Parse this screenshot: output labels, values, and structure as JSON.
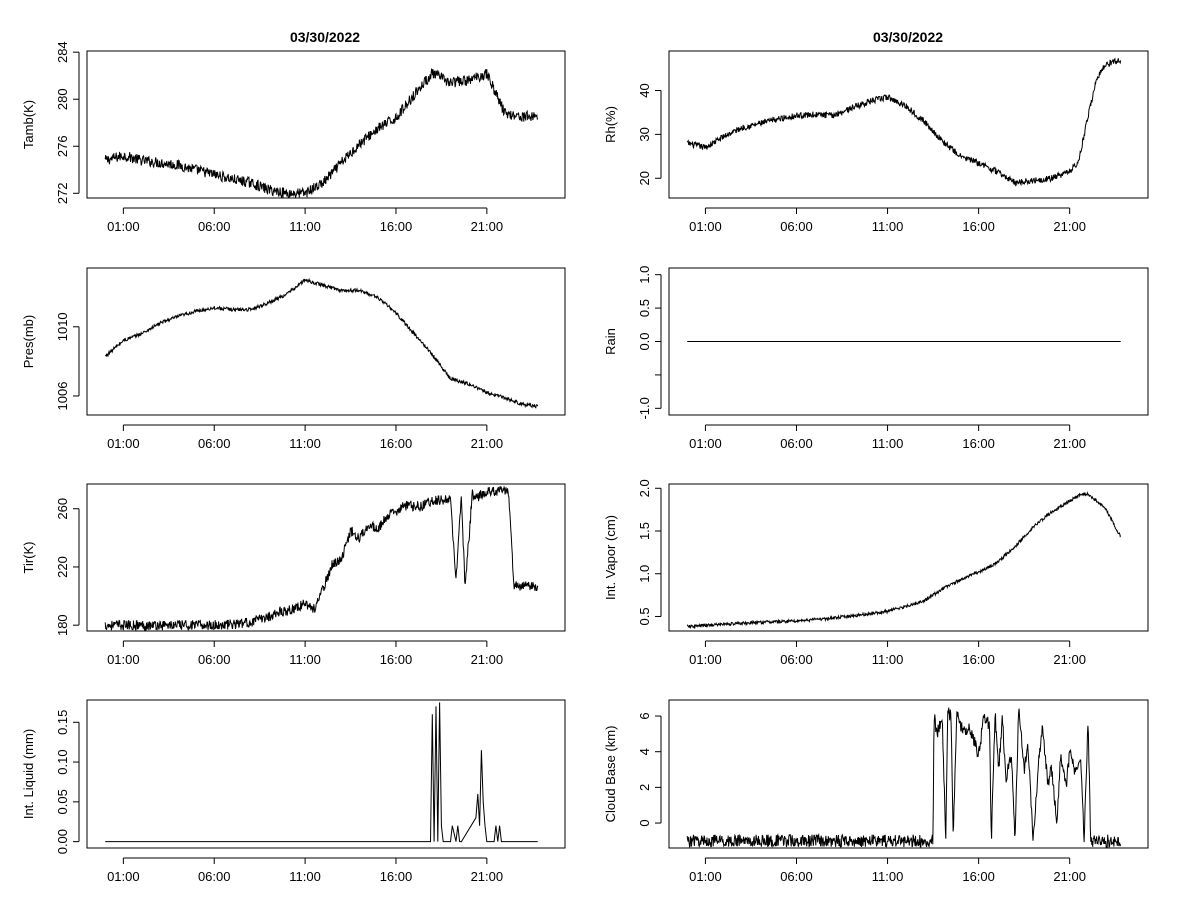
{
  "x_tick_labels": [
    "01:00",
    "06:00",
    "11:00",
    "16:00",
    "21:00"
  ],
  "x_tick_hours": [
    1,
    6,
    11,
    16,
    21
  ],
  "x_range_hours": [
    -1,
    25.3
  ],
  "titles": {
    "left": "03/30/2022",
    "right": "03/30/2022"
  },
  "chart_data": [
    {
      "id": "tamb",
      "type": "line",
      "title": "03/30/2022",
      "ylabel": "Tamb(K)",
      "ylim": [
        271.6,
        284.1
      ],
      "y_ticks": [
        272,
        276,
        280,
        284
      ],
      "y_tick_labels": [
        "272",
        "276",
        "280",
        "284"
      ],
      "x_hours": [
        0,
        1,
        2,
        3,
        4,
        5,
        6,
        7,
        8,
        9,
        10,
        11,
        12,
        13,
        14,
        15,
        16,
        17,
        18,
        19,
        20,
        21,
        22,
        23,
        23.8
      ],
      "values": [
        274.8,
        275.2,
        274.8,
        274.6,
        274.4,
        274.0,
        273.6,
        273.2,
        272.9,
        272.3,
        272.0,
        272.0,
        272.9,
        274.6,
        276.2,
        277.5,
        278.4,
        280.4,
        282.2,
        281.4,
        281.6,
        282.2,
        278.8,
        278.5,
        278.6
      ],
      "noise": 0.45
    },
    {
      "id": "rh",
      "type": "line",
      "title": "03/30/2022",
      "ylabel": "Rh(%)",
      "ylim": [
        15.5,
        49
      ],
      "y_ticks": [
        20,
        30,
        40
      ],
      "y_tick_labels": [
        "20",
        "30",
        "40"
      ],
      "x_hours": [
        0,
        1,
        2,
        3,
        4,
        5,
        6,
        7,
        8,
        9,
        10,
        11,
        12,
        13,
        14,
        15,
        16,
        17,
        18,
        19,
        20,
        21,
        21.5,
        22,
        22.5,
        23,
        23.8
      ],
      "values": [
        28,
        27,
        29.5,
        31.5,
        32.5,
        33.5,
        34.3,
        34.5,
        34.3,
        36,
        37.5,
        38.5,
        36.5,
        33,
        28.5,
        25,
        23.5,
        21.5,
        19,
        19.5,
        20,
        21.5,
        24,
        34,
        43,
        46,
        47
      ],
      "noise": 0.7
    },
    {
      "id": "pres",
      "type": "line",
      "ylabel": "Pres(mb)",
      "ylim": [
        1004.9,
        1013.4
      ],
      "y_ticks": [
        1006,
        1010
      ],
      "y_tick_labels": [
        "1006",
        "1010"
      ],
      "x_hours": [
        0,
        1,
        2,
        3,
        4,
        5,
        6,
        7,
        8,
        9,
        10,
        11,
        12,
        13,
        14,
        15,
        16,
        17,
        18,
        19,
        20,
        21,
        22,
        23,
        23.8
      ],
      "values": [
        1008.3,
        1009.2,
        1009.6,
        1010.2,
        1010.6,
        1010.9,
        1011.1,
        1011.0,
        1011.0,
        1011.4,
        1011.9,
        1012.7,
        1012.4,
        1012.1,
        1012.1,
        1011.7,
        1010.8,
        1009.6,
        1008.4,
        1007.0,
        1006.7,
        1006.2,
        1005.9,
        1005.5,
        1005.4
      ],
      "noise": 0.1
    },
    {
      "id": "rain",
      "type": "line",
      "ylabel": "Rain",
      "ylim": [
        -1.1,
        1.1
      ],
      "y_ticks": [
        -1.0,
        -0.5,
        0.0,
        0.5,
        1.0
      ],
      "y_tick_labels": [
        "-1.0",
        "",
        "0.0",
        "0.5",
        "1.0"
      ],
      "x_hours": [
        0,
        23.8
      ],
      "values": [
        0,
        0
      ],
      "noise": 0
    },
    {
      "id": "tir",
      "type": "line",
      "ylabel": "Tir(K)",
      "ylim": [
        176,
        277
      ],
      "y_ticks": [
        180,
        220,
        260
      ],
      "y_tick_labels": [
        "180",
        "220",
        "260"
      ],
      "x_hours": [
        0,
        2,
        4,
        6,
        7,
        8,
        9,
        9.5,
        10,
        10.5,
        11,
        11.5,
        12,
        12.5,
        13,
        13.5,
        14,
        14.5,
        15,
        15.5,
        16,
        16.5,
        17,
        17.5,
        18,
        18.5,
        19,
        19.3,
        19.6,
        19.8,
        20.2,
        20.5,
        21,
        21.5,
        21.9,
        22.2,
        22.5,
        23,
        23.5,
        23.8
      ],
      "values": [
        180,
        180,
        180,
        180,
        180.5,
        182,
        186,
        189,
        190,
        192,
        195,
        191,
        205,
        222,
        225,
        245,
        240,
        250,
        245,
        255,
        258,
        262,
        262,
        262,
        266,
        266,
        266,
        210,
        270,
        205,
        270,
        268,
        272,
        272,
        273,
        270,
        207,
        207,
        207,
        205
      ],
      "noise": 3.5
    },
    {
      "id": "vapor",
      "type": "line",
      "ylabel": "Int. Vapor (cm)",
      "ylim": [
        0.33,
        2.05
      ],
      "y_ticks": [
        0.5,
        1.0,
        1.5,
        2.0
      ],
      "y_tick_labels": [
        "0.5",
        "1.0",
        "1.5",
        "2.0"
      ],
      "x_hours": [
        0,
        2,
        4,
        6,
        8,
        10,
        11,
        12,
        13,
        14,
        15,
        16,
        17,
        18,
        19,
        20,
        21,
        21.5,
        22,
        22.5,
        23,
        23.5,
        23.8
      ],
      "values": [
        0.38,
        0.41,
        0.43,
        0.45,
        0.48,
        0.53,
        0.56,
        0.62,
        0.68,
        0.82,
        0.93,
        1.02,
        1.13,
        1.32,
        1.55,
        1.72,
        1.85,
        1.92,
        1.93,
        1.85,
        1.75,
        1.55,
        1.43
      ],
      "noise": 0.018
    },
    {
      "id": "liquid",
      "type": "line",
      "ylabel": "Int. Liquid (mm)",
      "ylim": [
        -0.008,
        0.178
      ],
      "y_ticks": [
        0.0,
        0.05,
        0.1,
        0.15
      ],
      "y_tick_labels": [
        "0.00",
        "0.05",
        "0.10",
        "0.15"
      ],
      "x_hours": [
        0,
        17.9,
        18.0,
        18.1,
        18.2,
        18.3,
        18.4,
        18.5,
        18.6,
        18.7,
        19.0,
        19.1,
        19.3,
        19.4,
        19.5,
        19.6,
        20.4,
        20.5,
        20.6,
        20.7,
        20.8,
        20.9,
        21.0,
        21.4,
        21.5,
        21.6,
        21.7,
        21.8,
        23.8
      ],
      "values": [
        0,
        0,
        0.16,
        0,
        0.17,
        0.0,
        0.175,
        0.02,
        0,
        0,
        0,
        0.02,
        0,
        0.02,
        0,
        0,
        0.03,
        0.06,
        0.02,
        0.115,
        0.05,
        0.02,
        0,
        0,
        0.02,
        0,
        0.02,
        0,
        0
      ],
      "noise": 0
    },
    {
      "id": "cloudbase",
      "type": "line",
      "ylabel": "Cloud Base (km)",
      "ylim": [
        -1.4,
        6.9
      ],
      "y_ticks": [
        0,
        2,
        4,
        6
      ],
      "y_tick_labels": [
        "0",
        "2",
        "4",
        "6"
      ],
      "x_hours": [
        0,
        13.5,
        13.55,
        13.7,
        14,
        14.2,
        14.3,
        14.5,
        14.6,
        14.8,
        15,
        15.2,
        15.5,
        15.8,
        16,
        16.3,
        16.6,
        16.7,
        16.9,
        17.1,
        17.3,
        17.5,
        17.8,
        18.0,
        18.2,
        18.5,
        18.7,
        19.0,
        19.3,
        19.5,
        19.8,
        20.0,
        20.3,
        20.5,
        20.8,
        21.0,
        21.3,
        21.6,
        21.8,
        22.0,
        22.1,
        22.15,
        23.8
      ],
      "values": [
        -1,
        -1,
        6.1,
        5.0,
        5.8,
        -1,
        6.3,
        5.9,
        -1,
        6.4,
        5.5,
        5.2,
        5.3,
        4.5,
        3.8,
        6.0,
        5.5,
        -1,
        6.2,
        3.0,
        5.9,
        2.5,
        4.0,
        -1,
        6.5,
        3.0,
        4.5,
        -1,
        3.5,
        5.5,
        2.2,
        3.0,
        0.0,
        3.8,
        2.0,
        4.0,
        2.8,
        3.5,
        -1,
        5.8,
        2.0,
        -1,
        -1
      ],
      "noise": 0.35
    }
  ]
}
